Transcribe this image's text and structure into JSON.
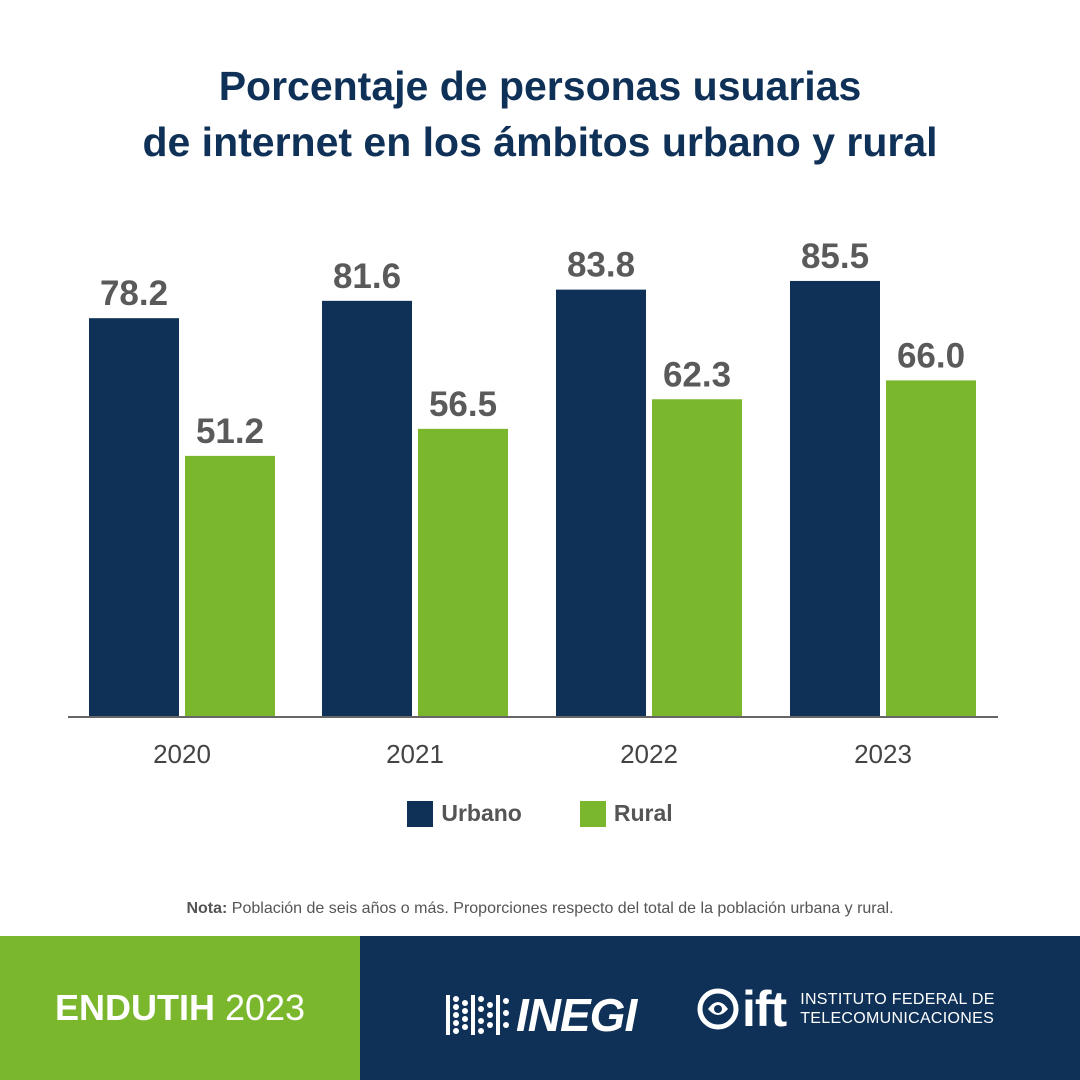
{
  "chart_data": {
    "type": "bar",
    "title_lines": [
      "Porcentaje de personas usuarias",
      "de internet en los ámbitos urbano y rural"
    ],
    "categories": [
      "2020",
      "2021",
      "2022",
      "2023"
    ],
    "series": [
      {
        "name": "Urbano",
        "color": "#0f3157",
        "values": [
          78.2,
          81.6,
          83.8,
          85.5
        ],
        "labels": [
          "78.2",
          "81.6",
          "83.8",
          "85.5"
        ]
      },
      {
        "name": "Rural",
        "color": "#7ab72d",
        "values": [
          51.2,
          56.5,
          62.3,
          66.0
        ],
        "labels": [
          "51.2",
          "56.5",
          "62.3",
          "66.0"
        ]
      }
    ],
    "ylim": [
      0,
      100
    ],
    "grid": false,
    "legend_position": "bottom"
  },
  "note": {
    "label": "Nota:",
    "text": " Población de seis años o más. Proporciones respecto del total de la población urbana y rural."
  },
  "footer": {
    "survey_name": "ENDUTIH",
    "survey_year": "2023",
    "inegi_logo_text": "INEGI",
    "ift_logo_text": "ift",
    "ift_name_line1": "INSTITUTO FEDERAL DE",
    "ift_name_line2": "TELECOMUNICACIONES",
    "colors": {
      "green": "#7ab72d",
      "navy": "#0f3157"
    }
  }
}
